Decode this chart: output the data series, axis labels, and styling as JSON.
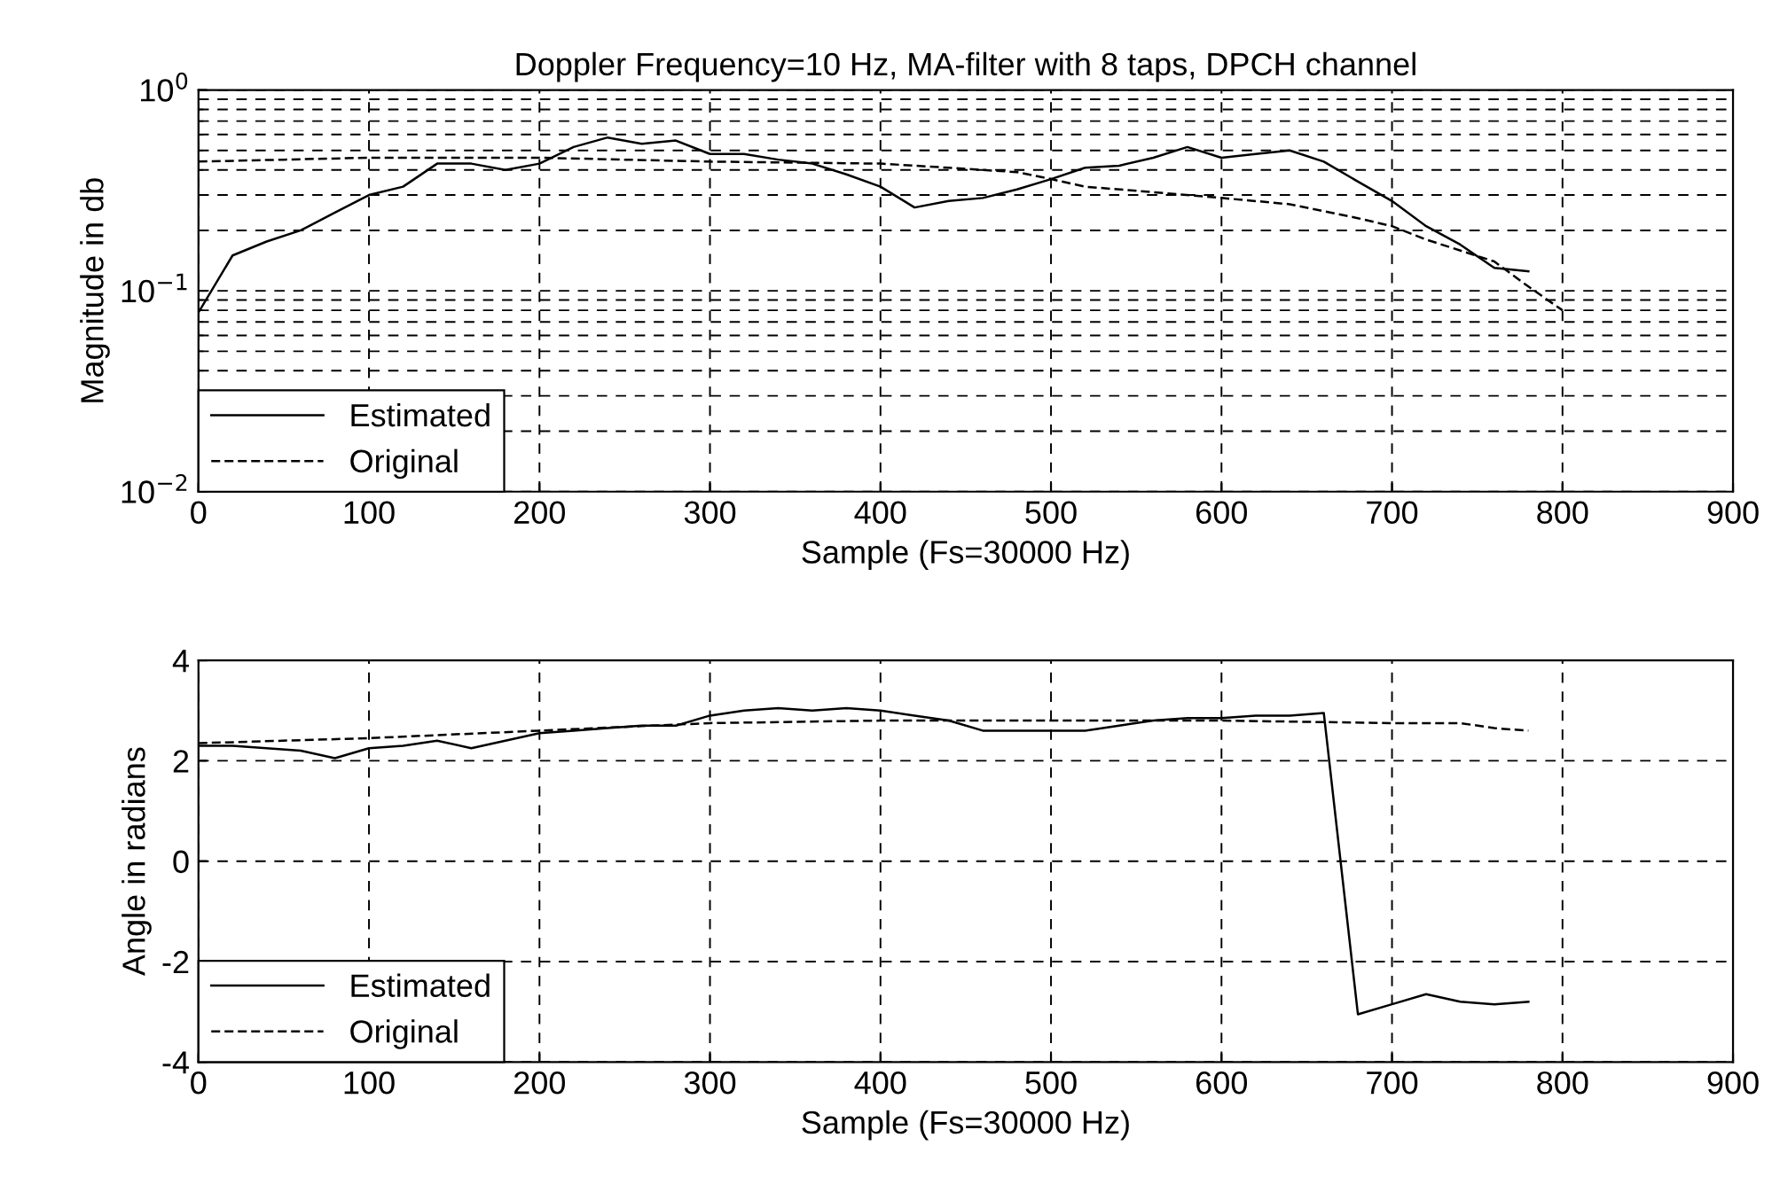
{
  "chart_data": [
    {
      "type": "line",
      "title": "Doppler Frequency=10 Hz, MA-filter with 8 taps, DPCH channel",
      "xlabel": "Sample (Fs=30000 Hz)",
      "ylabel": "Magnitude in db",
      "log": "y",
      "grid": true,
      "legend": "bottom left",
      "xlim": [
        0,
        900
      ],
      "xticks": [
        0,
        100,
        200,
        300,
        400,
        500,
        600,
        700,
        800,
        900
      ],
      "ylim": [
        0.01,
        1
      ],
      "yticks": [
        {
          "value": 0.01,
          "label": "10$^{−2}$"
        },
        {
          "value": 0.1,
          "label": "10$^{−1}$"
        },
        {
          "value": 1,
          "label": "10$^{0}$"
        }
      ],
      "series": [
        {
          "name": "Estimated",
          "color": "#000000",
          "line_style": "solid",
          "x": [
            0,
            20,
            40,
            60,
            80,
            100,
            120,
            140,
            160,
            180,
            200,
            220,
            240,
            260,
            280,
            300,
            320,
            340,
            360,
            380,
            400,
            420,
            440,
            460,
            480,
            500,
            520,
            540,
            560,
            580,
            600,
            620,
            640,
            660,
            680,
            700,
            720,
            740,
            760,
            780
          ],
          "values": [
            0.078,
            0.15,
            0.176,
            0.2,
            0.245,
            0.3,
            0.33,
            0.43,
            0.43,
            0.4,
            0.43,
            0.52,
            0.58,
            0.54,
            0.56,
            0.48,
            0.48,
            0.45,
            0.43,
            0.38,
            0.33,
            0.26,
            0.28,
            0.29,
            0.32,
            0.36,
            0.41,
            0.42,
            0.46,
            0.52,
            0.46,
            0.48,
            0.5,
            0.44,
            0.35,
            0.28,
            0.21,
            0.17,
            0.13,
            0.125
          ]
        },
        {
          "name": "Original",
          "color": "#000000",
          "line_style": "dashed",
          "x": [
            0,
            50,
            100,
            200,
            300,
            400,
            440,
            480,
            500,
            520,
            560,
            600,
            640,
            680,
            700,
            720,
            760,
            780,
            800
          ],
          "values": [
            0.44,
            0.45,
            0.46,
            0.46,
            0.44,
            0.43,
            0.41,
            0.39,
            0.36,
            0.33,
            0.31,
            0.29,
            0.27,
            0.23,
            0.21,
            0.18,
            0.14,
            0.105,
            0.08
          ]
        }
      ]
    },
    {
      "type": "line",
      "xlabel": "Sample (Fs=30000 Hz)",
      "ylabel": "Angle in radians",
      "grid": true,
      "legend": "bottom left",
      "xlim": [
        0,
        900
      ],
      "xticks": [
        0,
        100,
        200,
        300,
        400,
        500,
        600,
        700,
        800,
        900
      ],
      "ylim": [
        -4,
        4
      ],
      "yticks": [
        -4,
        -2,
        0,
        2,
        4
      ],
      "series": [
        {
          "name": "Estimated",
          "color": "#000000",
          "line_style": "solid",
          "x": [
            0,
            20,
            40,
            60,
            80,
            100,
            120,
            140,
            160,
            180,
            200,
            220,
            240,
            260,
            280,
            300,
            320,
            340,
            360,
            380,
            400,
            420,
            440,
            460,
            480,
            500,
            520,
            540,
            560,
            580,
            600,
            620,
            640,
            660,
            680,
            700,
            720,
            740,
            760,
            780
          ],
          "values": [
            2.3,
            2.3,
            2.25,
            2.2,
            2.05,
            2.25,
            2.3,
            2.4,
            2.25,
            2.4,
            2.55,
            2.6,
            2.65,
            2.7,
            2.7,
            2.9,
            3.0,
            3.05,
            3.0,
            3.05,
            3.0,
            2.9,
            2.8,
            2.6,
            2.6,
            2.6,
            2.6,
            2.7,
            2.8,
            2.85,
            2.85,
            2.9,
            2.9,
            2.95,
            -3.05,
            -2.85,
            -2.65,
            -2.8,
            -2.85,
            -2.8
          ]
        },
        {
          "name": "Original",
          "color": "#000000",
          "line_style": "dashed",
          "x": [
            0,
            100,
            200,
            300,
            400,
            500,
            600,
            700,
            740,
            760,
            780
          ],
          "values": [
            2.35,
            2.45,
            2.6,
            2.75,
            2.8,
            2.8,
            2.8,
            2.75,
            2.75,
            2.65,
            2.6
          ]
        }
      ]
    }
  ]
}
